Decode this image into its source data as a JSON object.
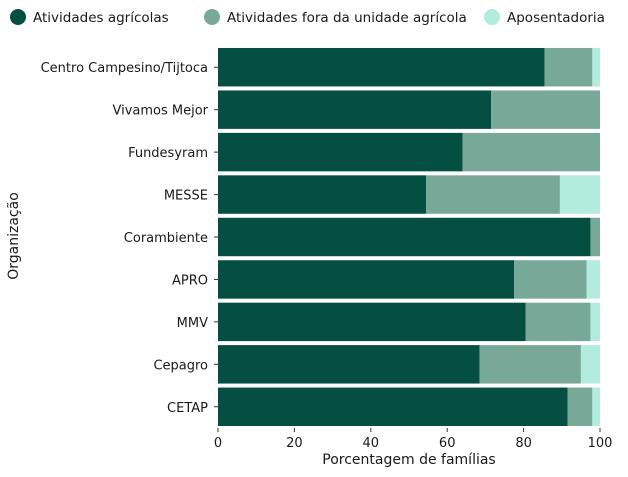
{
  "chart_data": {
    "type": "bar",
    "orientation": "horizontal",
    "stacked": true,
    "categories": [
      "Centro Campesino/Tijtoca",
      "Vivamos Mejor",
      "Fundesyram",
      "MESSE",
      "Corambiente",
      "APRO",
      "MMV",
      "Cepagro",
      "CETAP"
    ],
    "series": [
      {
        "name": "Atividades agrícolas",
        "color": "#044f42",
        "values": [
          85.5,
          71.5,
          64,
          54.5,
          97.5,
          77.5,
          80.5,
          68.5,
          91.5
        ]
      },
      {
        "name": "Atividades fora da unidade agrícola",
        "color": "#78a898",
        "values": [
          12.5,
          28.5,
          36,
          35,
          2.5,
          19,
          17,
          26.5,
          6.5
        ]
      },
      {
        "name": "Aposentadoria",
        "color": "#b3ebdd",
        "values": [
          2,
          0,
          0,
          10.5,
          0,
          3.5,
          2.5,
          5,
          2
        ]
      }
    ],
    "xlabel": "Porcentagem de famílias",
    "ylabel": "Organização",
    "xlim": [
      0,
      100
    ],
    "xticks": [
      0,
      20,
      40,
      60,
      80,
      100
    ],
    "legend_position": "top",
    "grid": false
  }
}
